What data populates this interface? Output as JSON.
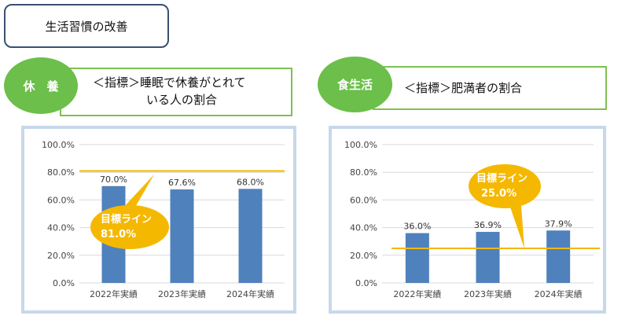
{
  "page": {
    "title": "生活習慣の改善"
  },
  "left": {
    "category": "休　養",
    "indicator_line1": "＜指標＞睡眠で休養がとれて",
    "indicator_line2": "いる人の割合",
    "target_callout": {
      "label": "目標ライン",
      "value": "81.0%"
    }
  },
  "right": {
    "category": "食生活",
    "indicator": "＜指標＞肥満者の割合",
    "target_callout": {
      "label": "目標ライン",
      "value": "25.0%"
    }
  },
  "colors": {
    "bar": "#4f81bd",
    "target_line": "#f5b800",
    "callout": "#f5b800",
    "circle": "#6cbf4a",
    "label_border": "#7dc150",
    "frame": "#c7d8ea"
  },
  "chart_data": [
    {
      "type": "bar",
      "categories": [
        "2022年実績",
        "2023年実績",
        "2024年実績"
      ],
      "values": [
        70.0,
        67.6,
        68.0
      ],
      "data_labels": [
        "70.0%",
        "67.6%",
        "68.0%"
      ],
      "target": 81.0,
      "ylim": [
        0,
        100
      ],
      "yticks": [
        "0.0%",
        "20.0%",
        "40.0%",
        "60.0%",
        "80.0%",
        "100.0%"
      ],
      "grid": true
    },
    {
      "type": "bar",
      "categories": [
        "2022年実績",
        "2023年実績",
        "2024年実績"
      ],
      "values": [
        36.0,
        36.9,
        37.9
      ],
      "data_labels": [
        "36.0%",
        "36.9%",
        "37.9%"
      ],
      "target": 25.0,
      "ylim": [
        0,
        100
      ],
      "yticks": [
        "0.0%",
        "20.0%",
        "40.0%",
        "60.0%",
        "80.0%",
        "100.0%"
      ],
      "grid": true
    }
  ]
}
